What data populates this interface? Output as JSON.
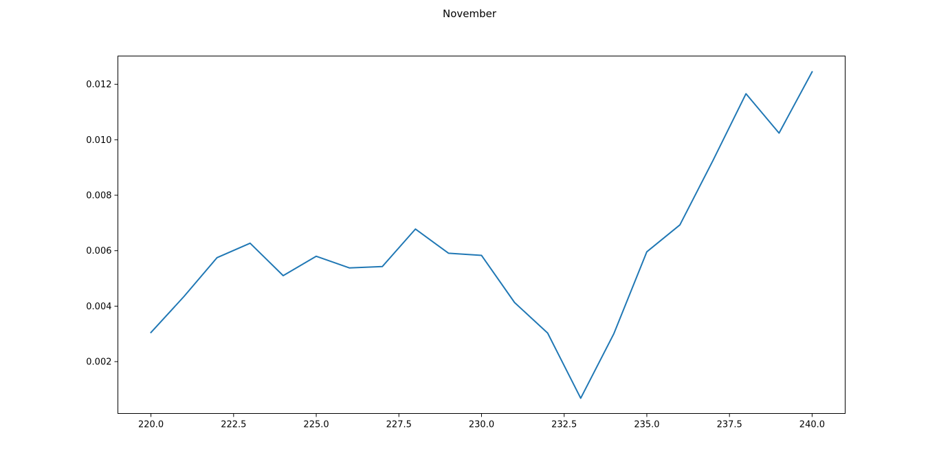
{
  "chart_data": {
    "type": "line",
    "title": "November",
    "xlabel": "",
    "ylabel": "",
    "xlim": [
      219.0,
      241.0
    ],
    "ylim": [
      0.00013,
      0.01302
    ],
    "x_ticks": [
      220.0,
      222.5,
      225.0,
      227.5,
      230.0,
      232.5,
      235.0,
      237.5,
      240.0
    ],
    "x_tick_labels": [
      "220.0",
      "222.5",
      "225.0",
      "227.5",
      "230.0",
      "232.5",
      "235.0",
      "237.5",
      "240.0"
    ],
    "y_ticks": [
      0.002,
      0.004,
      0.006,
      0.008,
      0.01,
      0.012
    ],
    "y_tick_labels": [
      "0.002",
      "0.004",
      "0.006",
      "0.008",
      "0.010",
      "0.012"
    ],
    "grid": false,
    "series": [
      {
        "color": "#1f77b4",
        "x": [
          220,
          221,
          222,
          223,
          224,
          225,
          226,
          227,
          228,
          229,
          230,
          231,
          232,
          233,
          234,
          235,
          236,
          237,
          238,
          239,
          240
        ],
        "values": [
          0.00305,
          0.00435,
          0.00575,
          0.00627,
          0.0051,
          0.0058,
          0.00538,
          0.00543,
          0.00678,
          0.00591,
          0.00583,
          0.00413,
          0.00303,
          0.00068,
          0.003,
          0.00596,
          0.00693,
          0.00925,
          0.01166,
          0.01024,
          0.01245
        ]
      }
    ]
  }
}
